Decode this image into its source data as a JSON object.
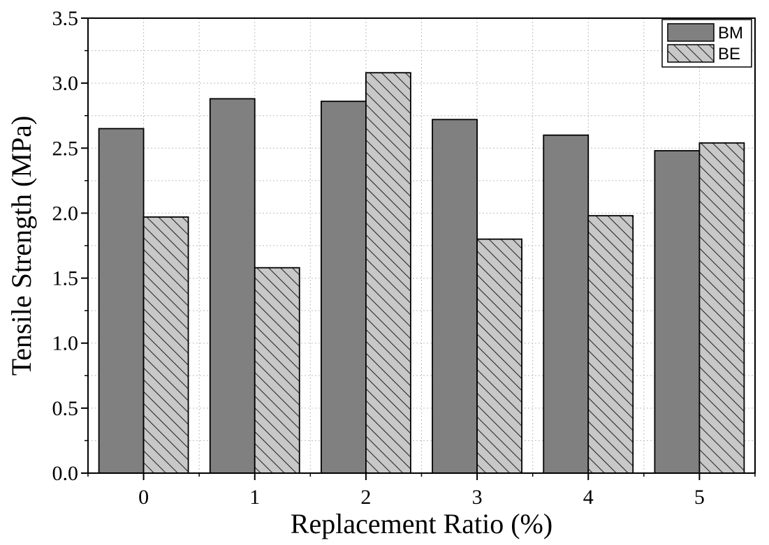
{
  "chart_data": {
    "type": "bar",
    "categories": [
      "0",
      "1",
      "2",
      "3",
      "4",
      "5"
    ],
    "series": [
      {
        "name": "BM",
        "values": [
          2.65,
          2.88,
          2.86,
          2.72,
          2.6,
          2.48
        ],
        "fill": "#808080",
        "pattern": "solid"
      },
      {
        "name": "BE",
        "values": [
          1.97,
          1.58,
          3.08,
          1.8,
          1.98,
          2.54
        ],
        "fill": "#c0c0c0",
        "pattern": "diagonal-hatch"
      }
    ],
    "title": "",
    "xlabel": "Replacement Ratio (%)",
    "ylabel": "Tensile Strength (MPa)",
    "ylim": [
      0,
      3.5
    ],
    "yticks": [
      "0.0",
      "0.5",
      "1.0",
      "1.5",
      "2.0",
      "2.5",
      "3.0",
      "3.5"
    ],
    "grid": true,
    "legend_position": "top-right"
  }
}
